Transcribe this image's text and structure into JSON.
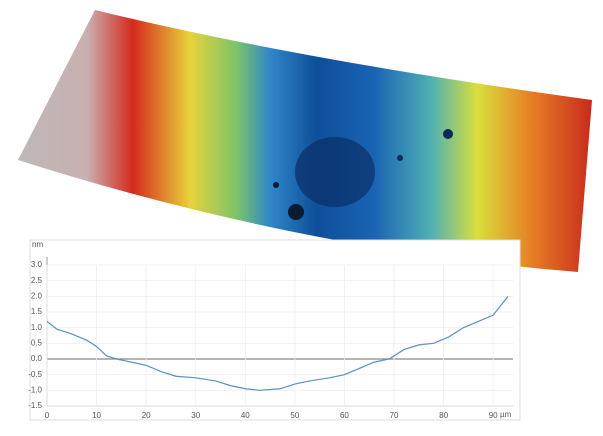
{
  "chart_data": {
    "type": "line",
    "y_label": "nm",
    "x_label": "µm",
    "x": [
      0,
      2,
      5,
      8,
      10,
      12,
      14,
      17,
      20,
      23,
      26,
      30,
      34,
      37,
      40,
      43,
      47,
      50,
      53,
      57,
      60,
      63,
      66,
      69,
      72,
      75,
      78,
      81,
      84,
      87,
      90,
      93
    ],
    "values": [
      1.2,
      0.95,
      0.8,
      0.6,
      0.4,
      0.1,
      0.0,
      -0.1,
      -0.2,
      -0.4,
      -0.55,
      -0.6,
      -0.7,
      -0.85,
      -0.95,
      -1.0,
      -0.95,
      -0.8,
      -0.7,
      -0.6,
      -0.5,
      -0.3,
      -0.1,
      0.0,
      0.3,
      0.45,
      0.5,
      0.7,
      1.0,
      1.2,
      1.4,
      2.0
    ],
    "color": "#5b8fc4",
    "xlim": [
      0,
      94
    ],
    "xticks": [
      0,
      10,
      20,
      30,
      40,
      50,
      60,
      70,
      80,
      90
    ],
    "ylim": [
      -1.5,
      3.0
    ],
    "yticks": [
      -1.5,
      {
        "value": -1,
        "label": "-1.0"
      },
      -0.5,
      {
        "value": 0,
        "label": "0.0"
      },
      0.5,
      {
        "value": 1,
        "label": "1.0"
      },
      1.5,
      {
        "value": 2,
        "label": "2.0"
      },
      2.5,
      {
        "value": 3,
        "label": "3.0"
      }
    ],
    "grid": true
  }
}
